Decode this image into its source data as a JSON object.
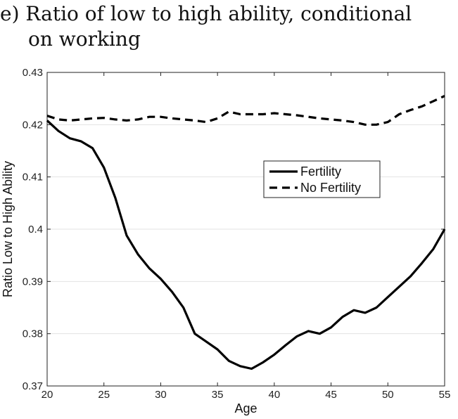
{
  "caption": {
    "line1": "e) Ratio of low to high ability, conditional",
    "line2": "on working"
  },
  "chart_data": {
    "type": "line",
    "title": "e) Ratio of low to high ability, conditional on working",
    "xlabel": "Age",
    "ylabel": "Ratio Low to High Ability",
    "xlim": [
      20,
      55
    ],
    "ylim": [
      0.37,
      0.43
    ],
    "xticks": [
      20,
      25,
      30,
      35,
      40,
      45,
      50,
      55
    ],
    "yticks": [
      0.37,
      0.38,
      0.39,
      0.4,
      0.41,
      0.42,
      0.43
    ],
    "ytick_labels": [
      "0.37",
      "0.38",
      "0.39",
      "0.4",
      "0.41",
      "0.42",
      "0.43"
    ],
    "grid": "horizontal",
    "legend_position": "right-center",
    "x": [
      20,
      21,
      22,
      23,
      24,
      25,
      26,
      27,
      28,
      29,
      30,
      31,
      32,
      33,
      34,
      35,
      36,
      37,
      38,
      39,
      40,
      41,
      42,
      43,
      44,
      45,
      46,
      47,
      48,
      49,
      50,
      51,
      52,
      53,
      54,
      55
    ],
    "series": [
      {
        "name": "Fertility",
        "style": "solid",
        "color": "#000000",
        "values": [
          0.4208,
          0.4188,
          0.4174,
          0.4168,
          0.4155,
          0.4118,
          0.406,
          0.3988,
          0.3952,
          0.3925,
          0.3905,
          0.388,
          0.385,
          0.38,
          0.3785,
          0.377,
          0.3748,
          0.3738,
          0.3733,
          0.3745,
          0.376,
          0.3778,
          0.3795,
          0.3805,
          0.38,
          0.3812,
          0.3832,
          0.3845,
          0.384,
          0.385,
          0.387,
          0.389,
          0.391,
          0.3935,
          0.3962,
          0.4
        ]
      },
      {
        "name": "No Fertility",
        "style": "dashed",
        "color": "#000000",
        "values": [
          0.4217,
          0.421,
          0.4208,
          0.421,
          0.4212,
          0.4213,
          0.421,
          0.4208,
          0.421,
          0.4215,
          0.4215,
          0.4212,
          0.421,
          0.4208,
          0.4205,
          0.4212,
          0.4225,
          0.422,
          0.422,
          0.422,
          0.4222,
          0.422,
          0.4218,
          0.4215,
          0.4212,
          0.421,
          0.4208,
          0.4205,
          0.42,
          0.42,
          0.4205,
          0.422,
          0.4228,
          0.4235,
          0.4245,
          0.4255
        ]
      }
    ]
  }
}
